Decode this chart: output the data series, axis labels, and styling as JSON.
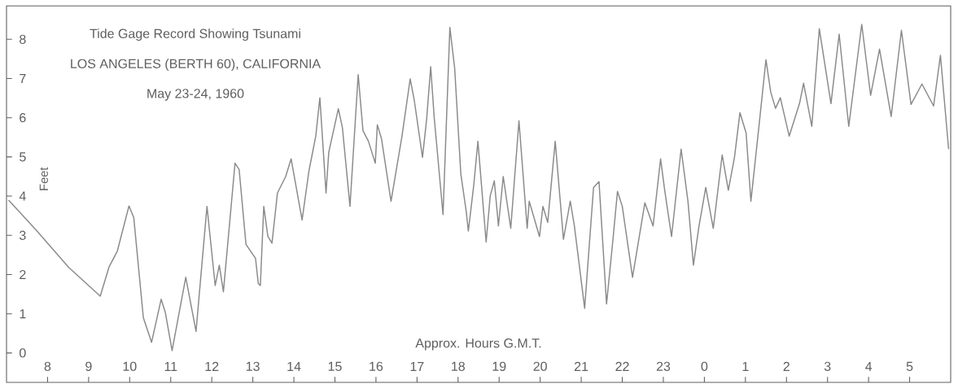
{
  "chart_data": {
    "type": "line",
    "title": "Tide Gage Record Showing Tsunami",
    "subtitle": "LOS ANGELES (BERTH 60), CALIFORNIA",
    "annotations": [
      "May 23-24, 1960"
    ],
    "xlabel": "Approx. Hours G.M.T.",
    "ylabel": "Feet",
    "xlim": [
      "1960-05-23T07:00",
      "1960-05-24T06:00"
    ],
    "ylim": [
      -0.75,
      8.85
    ],
    "yticks": [
      0,
      1,
      2,
      3,
      4,
      5,
      6,
      7,
      8
    ],
    "xticks": [
      {
        "value": "1960-05-23T08:00",
        "label": "8"
      },
      {
        "value": "1960-05-23T09:00",
        "label": "9"
      },
      {
        "value": "1960-05-23T10:00",
        "label": "10"
      },
      {
        "value": "1960-05-23T11:00",
        "label": "11"
      },
      {
        "value": "1960-05-23T12:00",
        "label": "12"
      },
      {
        "value": "1960-05-23T13:00",
        "label": "13"
      },
      {
        "value": "1960-05-23T14:00",
        "label": "14"
      },
      {
        "value": "1960-05-23T15:00",
        "label": "15"
      },
      {
        "value": "1960-05-23T16:00",
        "label": "16"
      },
      {
        "value": "1960-05-23T17:00",
        "label": "17"
      },
      {
        "value": "1960-05-23T18:00",
        "label": "18"
      },
      {
        "value": "1960-05-23T19:00",
        "label": "19"
      },
      {
        "value": "1960-05-23T20:00",
        "label": "20"
      },
      {
        "value": "1960-05-23T21:00",
        "label": "21"
      },
      {
        "value": "1960-05-23T22:00",
        "label": "22"
      },
      {
        "value": "1960-05-23T23:00",
        "label": "23"
      },
      {
        "value": "1960-05-24T00:00",
        "label": "0"
      },
      {
        "value": "1960-05-24T01:00",
        "label": "1"
      },
      {
        "value": "1960-05-24T02:00",
        "label": "2"
      },
      {
        "value": "1960-05-24T03:00",
        "label": "3"
      },
      {
        "value": "1960-05-24T04:00",
        "label": "4"
      },
      {
        "value": "1960-05-24T05:00",
        "label": "5"
      }
    ],
    "series": [
      {
        "color": "#8a8a8a",
        "x": [
          "1960-05-23T07:03",
          "1960-05-23T07:43",
          "1960-05-23T08:31",
          "1960-05-23T09:17",
          "1960-05-23T09:30",
          "1960-05-23T09:42",
          "1960-05-23T09:59",
          "1960-05-23T10:06",
          "1960-05-23T10:20",
          "1960-05-23T10:32",
          "1960-05-23T10:46",
          "1960-05-23T10:52",
          "1960-05-23T11:02",
          "1960-05-23T11:22",
          "1960-05-23T11:37",
          "1960-05-23T11:53",
          "1960-05-23T12:05",
          "1960-05-23T12:11",
          "1960-05-23T12:17",
          "1960-05-23T12:34",
          "1960-05-23T12:40",
          "1960-05-23T12:50",
          "1960-05-23T13:04",
          "1960-05-23T13:08",
          "1960-05-23T13:11",
          "1960-05-23T13:16",
          "1960-05-23T13:22",
          "1960-05-23T13:28",
          "1960-05-23T13:36",
          "1960-05-23T13:48",
          "1960-05-23T13:56",
          "1960-05-23T14:12",
          "1960-05-23T14:22",
          "1960-05-23T14:32",
          "1960-05-23T14:38",
          "1960-05-23T14:47",
          "1960-05-23T14:51",
          "1960-05-23T15:05",
          "1960-05-23T15:11",
          "1960-05-23T15:22",
          "1960-05-23T15:34",
          "1960-05-23T15:41",
          "1960-05-23T15:49",
          "1960-05-23T15:59",
          "1960-05-23T16:02",
          "1960-05-23T16:08",
          "1960-05-23T16:22",
          "1960-05-23T16:38",
          "1960-05-23T16:50",
          "1960-05-23T16:56",
          "1960-05-23T17:08",
          "1960-05-23T17:14",
          "1960-05-23T17:20",
          "1960-05-23T17:25",
          "1960-05-23T17:38",
          "1960-05-23T17:48",
          "1960-05-23T17:55",
          "1960-05-23T18:04",
          "1960-05-23T18:12",
          "1960-05-23T18:15",
          "1960-05-23T18:23",
          "1960-05-23T18:29",
          "1960-05-23T18:41",
          "1960-05-23T18:47",
          "1960-05-23T18:53",
          "1960-05-23T18:59",
          "1960-05-23T19:06",
          "1960-05-23T19:17",
          "1960-05-23T19:29",
          "1960-05-23T19:41",
          "1960-05-23T19:44",
          "1960-05-23T19:59",
          "1960-05-23T20:04",
          "1960-05-23T20:11",
          "1960-05-23T20:22",
          "1960-05-23T20:34",
          "1960-05-23T20:44",
          "1960-05-23T20:50",
          "1960-05-23T21:05",
          "1960-05-23T21:18",
          "1960-05-23T21:26",
          "1960-05-23T21:37",
          "1960-05-23T21:46",
          "1960-05-23T21:53",
          "1960-05-23T22:00",
          "1960-05-23T22:15",
          "1960-05-23T22:33",
          "1960-05-23T22:45",
          "1960-05-23T22:56",
          "1960-05-23T23:02",
          "1960-05-23T23:12",
          "1960-05-23T23:26",
          "1960-05-23T23:36",
          "1960-05-23T23:44",
          "1960-05-23T23:52",
          "1960-05-24T00:02",
          "1960-05-24T00:13",
          "1960-05-24T00:26",
          "1960-05-24T00:35",
          "1960-05-24T00:44",
          "1960-05-24T00:52",
          "1960-05-24T01:01",
          "1960-05-24T01:08",
          "1960-05-24T01:20",
          "1960-05-24T01:30",
          "1960-05-24T01:37",
          "1960-05-24T01:44",
          "1960-05-24T01:51",
          "1960-05-24T02:04",
          "1960-05-24T02:19",
          "1960-05-24T02:25",
          "1960-05-24T02:37",
          "1960-05-24T02:48",
          "1960-05-24T03:05",
          "1960-05-24T03:17",
          "1960-05-24T03:31",
          "1960-05-24T03:50",
          "1960-05-24T04:03",
          "1960-05-24T04:16",
          "1960-05-24T04:33",
          "1960-05-24T04:48",
          "1960-05-24T05:02",
          "1960-05-24T05:18",
          "1960-05-24T05:35",
          "1960-05-24T05:45",
          "1960-05-24T05:57"
        ],
        "values": [
          3.9,
          3.14,
          2.18,
          1.45,
          2.2,
          2.6,
          3.75,
          3.45,
          0.9,
          0.27,
          1.37,
          1.04,
          0.06,
          1.93,
          0.55,
          3.74,
          1.72,
          2.24,
          1.56,
          4.84,
          4.68,
          2.77,
          2.41,
          1.77,
          1.72,
          3.74,
          2.97,
          2.8,
          4.08,
          4.5,
          4.95,
          3.39,
          4.64,
          5.53,
          6.51,
          4.08,
          5.12,
          6.23,
          5.74,
          3.74,
          7.1,
          5.67,
          5.4,
          4.84,
          5.82,
          5.47,
          3.87,
          5.53,
          6.99,
          6.44,
          4.99,
          5.95,
          7.3,
          6.03,
          3.53,
          8.3,
          7.27,
          4.57,
          3.6,
          3.11,
          4.29,
          5.4,
          2.83,
          4.01,
          4.39,
          3.24,
          4.5,
          3.18,
          5.92,
          3.18,
          3.87,
          2.97,
          3.74,
          3.33,
          5.4,
          2.9,
          3.87,
          3.24,
          1.14,
          4.22,
          4.37,
          1.25,
          2.83,
          4.12,
          3.74,
          1.93,
          3.83,
          3.24,
          4.95,
          4.15,
          2.97,
          5.2,
          3.87,
          2.24,
          3.22,
          4.22,
          3.18,
          5.05,
          4.15,
          4.99,
          6.13,
          5.61,
          3.87,
          5.82,
          7.48,
          6.65,
          6.24,
          6.51,
          5.53,
          6.36,
          6.88,
          5.78,
          8.27,
          6.36,
          8.13,
          5.78,
          8.38,
          6.57,
          7.75,
          6.03,
          8.23,
          6.34,
          6.86,
          6.3,
          7.59,
          5.2
        ]
      }
    ]
  }
}
